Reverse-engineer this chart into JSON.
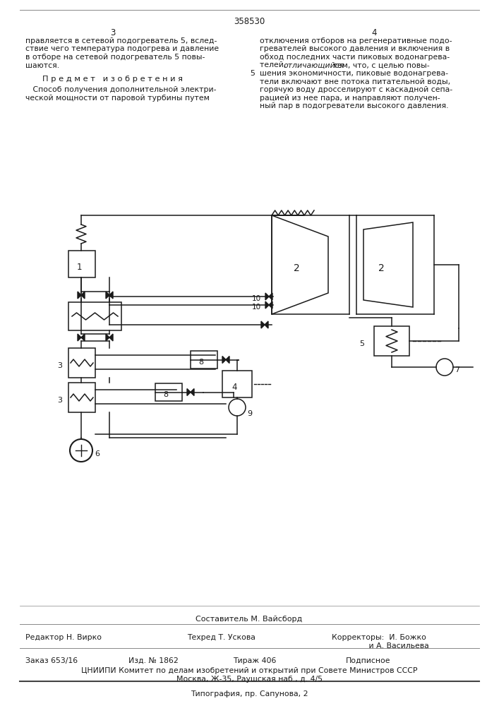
{
  "page_number": "358530",
  "col_left_num": "3",
  "col_right_num": "4",
  "bg_color": "#ffffff",
  "text_color": "#1a1a1a",
  "footer_composer": "Составитель М. Вайсборд",
  "footer_editor": "Редактор Н. Вирко",
  "footer_tech": "Техред Т. Ускова",
  "footer_order": "Заказ 653/16",
  "footer_publish": "Изд. № 1862",
  "footer_circulation": "Тираж 406",
  "footer_subscription": "Подписное",
  "footer_org": "ЦНИИПИ Комитет по делам изобретений и открытий при Совете Министров СССР",
  "footer_address": "Москва, Ж-35, Раушская наб., д. 4/5",
  "footer_printer": "Типография, пр. Сапунова, 2"
}
